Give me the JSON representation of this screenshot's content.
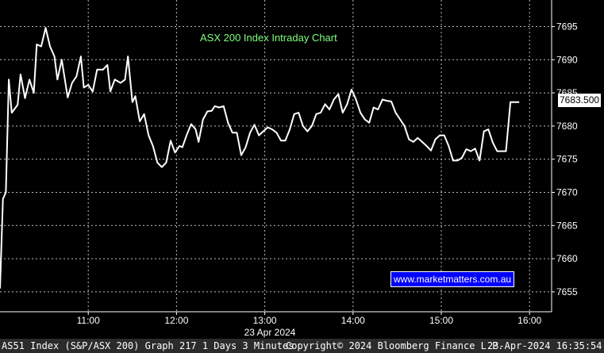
{
  "chart_data": {
    "type": "line",
    "title": "ASX 200 Index Intraday Chart",
    "date_label": "23 Apr 2024",
    "x_ticks": [
      "11:00",
      "12:00",
      "13:00",
      "14:00",
      "15:00",
      "16:00"
    ],
    "y_ticks": [
      7655,
      7660,
      7665,
      7670,
      7675,
      7680,
      7685,
      7690,
      7695
    ],
    "ylim": [
      7652,
      7699
    ],
    "last_value_label": "7683.500",
    "grid": true,
    "series": [
      {
        "color": "#ffffff",
        "points": [
          [
            "10:00",
            7655.5
          ],
          [
            "10:02",
            7669
          ],
          [
            "10:04",
            7670
          ],
          [
            "10:06",
            7687
          ],
          [
            "10:08",
            7682
          ],
          [
            "10:12",
            7683.2
          ],
          [
            "10:14",
            7687.8
          ],
          [
            "10:17",
            7684.2
          ],
          [
            "10:20",
            7687
          ],
          [
            "10:23",
            7685
          ],
          [
            "10:25",
            7692.3
          ],
          [
            "10:28",
            7692
          ],
          [
            "10:31",
            7694.8
          ],
          [
            "10:34",
            7692
          ],
          [
            "10:37",
            7690.5
          ],
          [
            "10:39",
            7687
          ],
          [
            "10:42",
            7690
          ],
          [
            "10:46",
            7684.3
          ],
          [
            "10:49",
            7686.5
          ],
          [
            "10:52",
            7687.5
          ],
          [
            "10:55",
            7690.5
          ],
          [
            "10:57",
            7685.8
          ],
          [
            "11:00",
            7686.2
          ],
          [
            "11:03",
            7685.2
          ],
          [
            "11:06",
            7688.5
          ],
          [
            "11:10",
            7688.5
          ],
          [
            "11:13",
            7689.2
          ],
          [
            "11:15",
            7685.2
          ],
          [
            "11:18",
            7687
          ],
          [
            "11:22",
            7686.5
          ],
          [
            "11:25",
            7687
          ],
          [
            "11:27",
            7690.5
          ],
          [
            "11:30",
            7683.6
          ],
          [
            "11:32",
            7684.5
          ],
          [
            "11:35",
            7680.7
          ],
          [
            "11:38",
            7681.8
          ],
          [
            "11:41",
            7678.6
          ],
          [
            "11:44",
            7677
          ],
          [
            "11:47",
            7674.5
          ],
          [
            "11:50",
            7673.8
          ],
          [
            "11:53",
            7674.5
          ],
          [
            "11:56",
            7677.8
          ],
          [
            "11:59",
            7676
          ],
          [
            "12:02",
            7677
          ],
          [
            "12:04",
            7676.8
          ],
          [
            "12:07",
            7678.7
          ],
          [
            "12:10",
            7680.3
          ],
          [
            "12:13",
            7679.5
          ],
          [
            "12:15",
            7677.6
          ],
          [
            "12:18",
            7681
          ],
          [
            "12:21",
            7682.2
          ],
          [
            "12:24",
            7682.3
          ],
          [
            "12:26",
            7683
          ],
          [
            "12:29",
            7682.8
          ],
          [
            "12:32",
            7683
          ],
          [
            "12:35",
            7680.5
          ],
          [
            "12:38",
            7679
          ],
          [
            "12:41",
            7679
          ],
          [
            "12:44",
            7675.6
          ],
          [
            "12:47",
            7676.8
          ],
          [
            "12:50",
            7679
          ],
          [
            "12:53",
            7680.2
          ],
          [
            "12:56",
            7678.6
          ],
          [
            "12:59",
            7679.2
          ],
          [
            "13:02",
            7679.8
          ],
          [
            "13:05",
            7679.5
          ],
          [
            "13:08",
            7679
          ],
          [
            "13:11",
            7677.8
          ],
          [
            "13:14",
            7677.8
          ],
          [
            "13:17",
            7679.5
          ],
          [
            "13:20",
            7681.8
          ],
          [
            "13:23",
            7682
          ],
          [
            "13:26",
            7680
          ],
          [
            "13:29",
            7679.2
          ],
          [
            "13:32",
            7680
          ],
          [
            "13:35",
            7681.8
          ],
          [
            "13:38",
            7682
          ],
          [
            "13:41",
            7683.3
          ],
          [
            "13:44",
            7682.5
          ],
          [
            "13:47",
            7684
          ],
          [
            "13:50",
            7684.8
          ],
          [
            "13:53",
            7682
          ],
          [
            "13:56",
            7683.3
          ],
          [
            "13:59",
            7685.5
          ],
          [
            "14:02",
            7684
          ],
          [
            "14:05",
            7682
          ],
          [
            "14:08",
            7681
          ],
          [
            "14:11",
            7680.5
          ],
          [
            "14:14",
            7682.8
          ],
          [
            "14:17",
            7682.5
          ],
          [
            "14:20",
            7684
          ],
          [
            "14:23",
            7683.8
          ],
          [
            "14:26",
            7683.7
          ],
          [
            "14:29",
            7682
          ],
          [
            "14:32",
            7681
          ],
          [
            "14:35",
            7680
          ],
          [
            "14:38",
            7678
          ],
          [
            "14:41",
            7677.6
          ],
          [
            "14:44",
            7678.2
          ],
          [
            "14:47",
            7677.6
          ],
          [
            "14:50",
            7677
          ],
          [
            "14:53",
            7676.3
          ],
          [
            "14:56",
            7678
          ],
          [
            "14:59",
            7678.6
          ],
          [
            "15:02",
            7678.6
          ],
          [
            "15:05",
            7677
          ],
          [
            "15:08",
            7674.8
          ],
          [
            "15:11",
            7674.8
          ],
          [
            "15:14",
            7675.2
          ],
          [
            "15:17",
            7676.5
          ],
          [
            "15:20",
            7676.2
          ],
          [
            "15:23",
            7676.6
          ],
          [
            "15:26",
            7674.8
          ],
          [
            "15:29",
            7679.2
          ],
          [
            "15:32",
            7679.5
          ],
          [
            "15:35",
            7677.5
          ],
          [
            "15:38",
            7676.2
          ],
          [
            "15:41",
            7676.2
          ],
          [
            "15:44",
            7676.2
          ],
          [
            "15:47",
            7683.6
          ],
          [
            "15:50",
            7683.6
          ],
          [
            "15:53",
            7683.6
          ]
        ]
      }
    ]
  },
  "watermark": "www.marketmatters.com.au",
  "footer": {
    "left": "AS51 Index (S&P/ASX 200) Graph 217 1 Days 3 Minutes",
    "center": "Copyright© 2024 Bloomberg Finance L.P.",
    "right": "23-Apr-2024 16:35:54"
  }
}
